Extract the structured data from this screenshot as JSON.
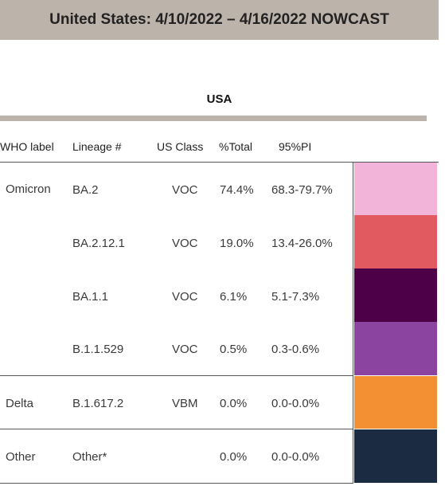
{
  "header": {
    "title": "United States: 4/10/2022 – 4/16/2022 NOWCAST"
  },
  "region": {
    "label": "USA"
  },
  "columns": {
    "who_label": "WHO label",
    "lineage": "Lineage #",
    "us_class": "US Class",
    "pct_total": "%Total",
    "pi": "95%PI"
  },
  "rows": [
    {
      "who": "Omicron",
      "lineage": "BA.2",
      "class": "VOC",
      "total": "74.4%",
      "pi": "68.3-79.7%",
      "color": "#f2b5d9"
    },
    {
      "who": "",
      "lineage": "BA.2.12.1",
      "class": "VOC",
      "total": "19.0%",
      "pi": "13.4-26.0%",
      "color": "#e05a5f"
    },
    {
      "who": "",
      "lineage": "BA.1.1",
      "class": "VOC",
      "total": "6.1%",
      "pi": "5.1-7.3%",
      "color": "#4d0048"
    },
    {
      "who": "",
      "lineage": "B.1.1.529",
      "class": "VOC",
      "total": "0.5%",
      "pi": "0.3-0.6%",
      "color": "#8b44a0"
    },
    {
      "who": "Delta",
      "lineage": "B.1.617.2",
      "class": "VBM",
      "total": "0.0%",
      "pi": "0.0-0.0%",
      "color": "#f29033"
    },
    {
      "who": "Other",
      "lineage": "Other*",
      "class": "",
      "total": "0.0%",
      "pi": "0.0-0.0%",
      "color": "#1a2b42"
    }
  ]
}
